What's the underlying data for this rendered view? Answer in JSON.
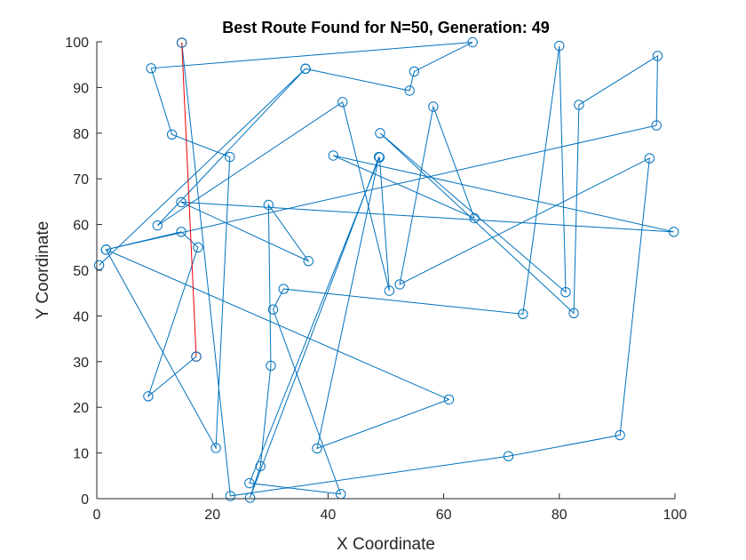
{
  "chart_data": {
    "type": "line",
    "title": "Best Route Found for N=50, Generation: 49",
    "xlabel": "X Coordinate",
    "ylabel": "Y Coordinate",
    "xlim": [
      0,
      100
    ],
    "ylim": [
      0,
      100
    ],
    "xticks": [
      "0",
      "20",
      "40",
      "60",
      "80",
      "100"
    ],
    "yticks": [
      "0",
      "10",
      "20",
      "30",
      "40",
      "50",
      "60",
      "70",
      "80",
      "90",
      "100"
    ],
    "colors": {
      "route": "#0072BD",
      "closing_segment": "#E8000B"
    },
    "series": [
      {
        "role": "route",
        "x": [
          17.2,
          8.9,
          17.5,
          14.6,
          1.6,
          96.8,
          97.0,
          83.4,
          82.5,
          49.0,
          81.1,
          80.0,
          73.7,
          32.3,
          30.5,
          42.2,
          26.4,
          48.9,
          50.6,
          42.5,
          10.5,
          36.1,
          0.4,
          36.1,
          54.1,
          54.9,
          65.0,
          9.4,
          13.0,
          23.0,
          20.6,
          1.6,
          60.9,
          38.1,
          48.8,
          26.5,
          28.3,
          30.1,
          29.7,
          36.6,
          14.6,
          99.8,
          40.9,
          65.3,
          58.2,
          52.4,
          95.6,
          90.5,
          71.2,
          23.1,
          14.7
        ],
        "y": [
          31.1,
          22.4,
          55.0,
          58.4,
          54.5,
          81.7,
          96.9,
          86.2,
          40.6,
          80.0,
          45.2,
          99.1,
          40.4,
          45.9,
          41.4,
          1.0,
          3.4,
          74.7,
          45.5,
          86.8,
          59.8,
          94.1,
          51.1,
          94.1,
          89.3,
          93.5,
          99.9,
          94.2,
          79.7,
          74.8,
          11.1,
          54.5,
          21.7,
          11.0,
          74.8,
          0.2,
          7.1,
          29.1,
          64.3,
          52.0,
          64.9,
          58.4,
          75.1,
          61.4,
          85.8,
          46.9,
          74.5,
          13.9,
          9.3,
          0.6,
          99.8
        ]
      },
      {
        "role": "closing_segment",
        "x": [
          14.7,
          17.2
        ],
        "y": [
          99.8,
          31.1
        ]
      }
    ],
    "grid": false,
    "legend": "none"
  }
}
